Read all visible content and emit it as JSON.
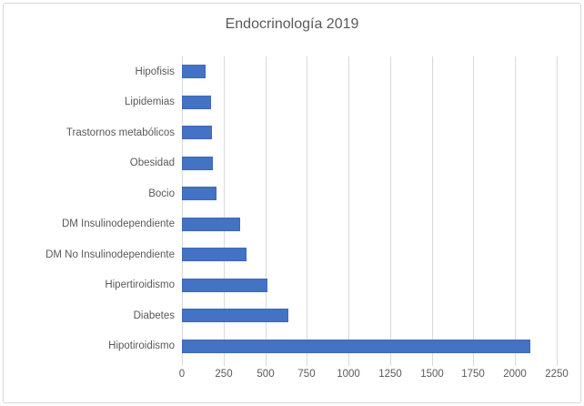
{
  "chart_data": {
    "type": "bar",
    "orientation": "horizontal",
    "title": "Endocrinología 2019",
    "categories": [
      "Hipofisis",
      "Lipidemias",
      "Trastornos metabólicos",
      "Obesidad",
      "Bocio",
      "DM Insulinodependiente",
      "DM No Insulinodependiente",
      "Hipertiroidismo",
      "Diabetes",
      "Hipotiroidismo"
    ],
    "values": [
      140,
      175,
      180,
      185,
      205,
      350,
      390,
      515,
      640,
      2090
    ],
    "x_ticks": [
      0,
      250,
      500,
      750,
      1000,
      1250,
      1500,
      1750,
      2000,
      2250
    ],
    "xlim": [
      0,
      2250
    ],
    "xlabel": "",
    "ylabel": "",
    "grid": "vertical-only",
    "legend": "none",
    "colors": {
      "bar_fill": "#4472C4",
      "bar_border": "#3E69B8",
      "gridline": "#D9D9D9",
      "text": "#595959",
      "chart_border": "#D9D9D9",
      "background": "#FFFFFF"
    }
  }
}
